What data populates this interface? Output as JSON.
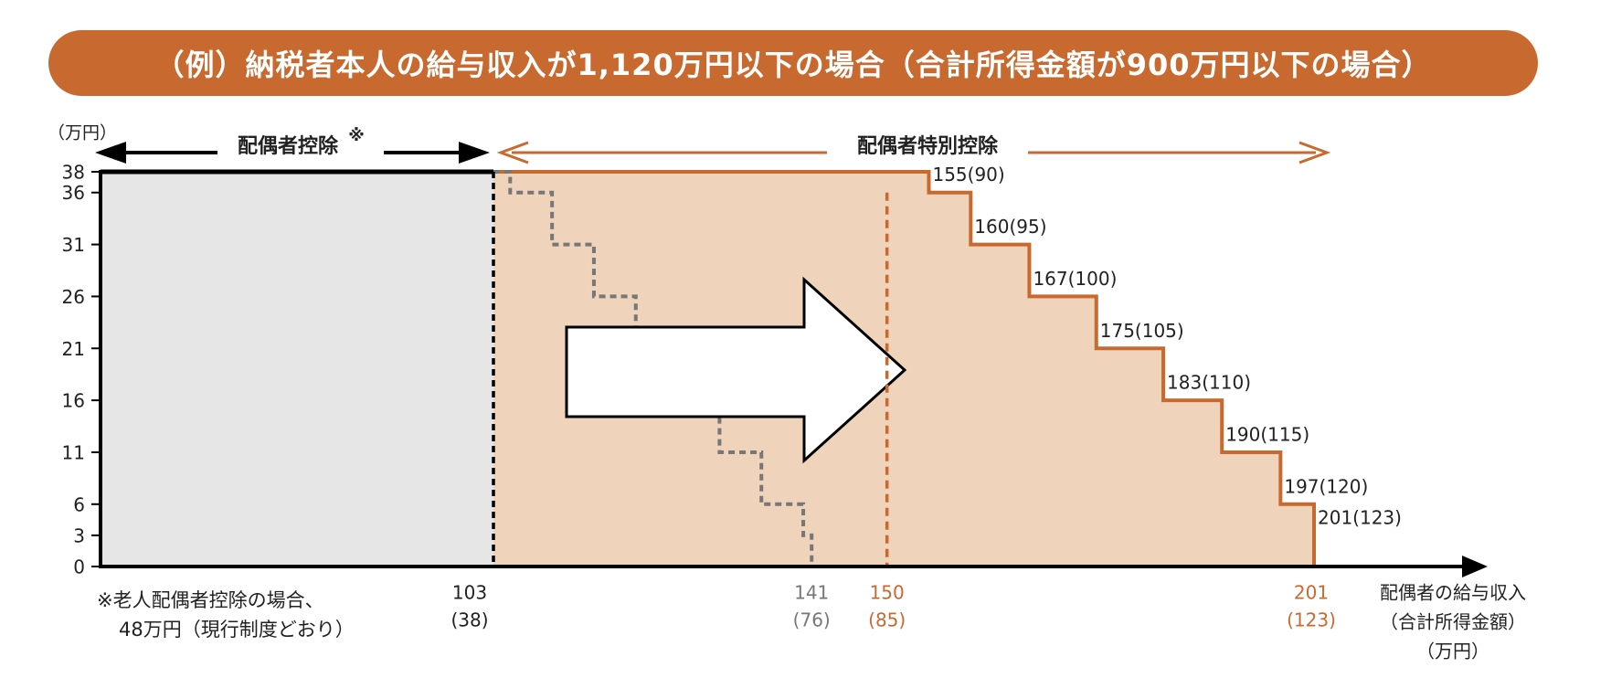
{
  "banner": {
    "title": "（例）納税者本人の給与収入が1,120万円以下の場合（合計所得金額が900万円以下の場合）"
  },
  "colors": {
    "orange": "#c8692f",
    "fill": "#f0d3bb",
    "gray_fill": "#e6e6e6",
    "gray_line": "#777777",
    "black": "#000000"
  },
  "labels": {
    "y_unit": "（万円）",
    "spouse_deduction": "配偶者控除",
    "asterisk": "※",
    "special_deduction": "配偶者特別控除",
    "footnote_line1": "※老人配偶者控除の場合、",
    "footnote_line2": "48万円（現行制度どおり）",
    "x_title_line1": "配偶者の給与収入",
    "x_title_line2": "（合計所得金額）",
    "x_title_line3": "（万円）"
  },
  "chart_data": {
    "type": "line",
    "title": "（例）納税者本人の給与収入が1,120万円以下の場合（合計所得金額が900万円以下の場合）",
    "ylabel": "（万円）",
    "xlabel": "配偶者の給与収入（合計所得金額）（万円）",
    "y_ticks": [
      0,
      3,
      6,
      11,
      16,
      21,
      26,
      31,
      36,
      38
    ],
    "ylim": [
      0,
      38
    ],
    "series": [
      {
        "name": "配偶者特別控除",
        "steps": [
          {
            "x": 150,
            "y": 38
          },
          {
            "x": 155,
            "y": 36
          },
          {
            "x": 160,
            "y": 31
          },
          {
            "x": 167,
            "y": 26
          },
          {
            "x": 175,
            "y": 21
          },
          {
            "x": 183,
            "y": 16
          },
          {
            "x": 190,
            "y": 11
          },
          {
            "x": 197,
            "y": 6
          },
          {
            "x": 201,
            "y": 3
          }
        ]
      },
      {
        "steps": [
          {
            "x": 103,
            "y": 38
          },
          {
            "x": 105,
            "y": 36
          },
          {
            "x": 110,
            "y": 31
          },
          {
            "x": 115,
            "y": 26
          },
          {
            "x": 120,
            "y": 21
          },
          {
            "x": 125,
            "y": 16
          },
          {
            "x": 130,
            "y": 11
          },
          {
            "x": 135,
            "y": 6
          },
          {
            "x": 140,
            "y": 3
          },
          {
            "x": 141,
            "y": 0
          }
        ]
      }
    ],
    "step_labels": [
      {
        "x": 155,
        "y": 36,
        "main": "155",
        "sub": "(90)"
      },
      {
        "x": 160,
        "y": 31,
        "main": "160",
        "sub": "(95)"
      },
      {
        "x": 167,
        "y": 26,
        "main": "167",
        "sub": "(100)"
      },
      {
        "x": 175,
        "y": 21,
        "main": "175",
        "sub": "(105)"
      },
      {
        "x": 183,
        "y": 16,
        "main": "183",
        "sub": "(110)"
      },
      {
        "x": 190,
        "y": 11,
        "main": "190",
        "sub": "(115)"
      },
      {
        "x": 197,
        "y": 6,
        "main": "197",
        "sub": "(120)"
      },
      {
        "x": 201,
        "y": 3,
        "main": "201",
        "sub": "(123)"
      }
    ],
    "x_markers": [
      {
        "x": 103,
        "top": "103",
        "bottom": "(38)",
        "style": "black"
      },
      {
        "x": 141,
        "top": "141",
        "bottom": "(76)",
        "style": "gray"
      },
      {
        "x": 150,
        "top": "150",
        "bottom": "(85)",
        "style": "orange"
      },
      {
        "x": 201,
        "top": "201",
        "bottom": "(123)",
        "style": "orange"
      }
    ]
  }
}
